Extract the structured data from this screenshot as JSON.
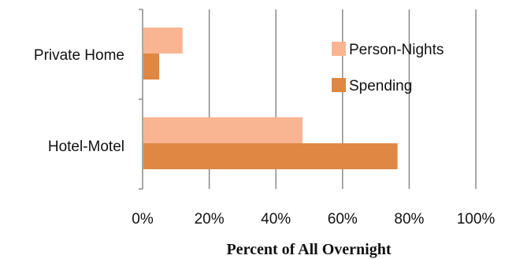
{
  "chart_data": {
    "type": "bar",
    "orientation": "horizontal",
    "categories": [
      "Private Home",
      "Hotel-Motel"
    ],
    "series": [
      {
        "name": "Person-Nights",
        "values": [
          12,
          48
        ],
        "color": "#F9B592"
      },
      {
        "name": "Spending",
        "values": [
          5,
          76.5
        ],
        "color": "#DE8844"
      }
    ],
    "xlabel": "Percent  of All Overnight",
    "ylabel": "",
    "xlim": [
      0,
      100
    ],
    "xticks": [
      "0%",
      "20%",
      "40%",
      "60%",
      "80%",
      "100%"
    ],
    "grid": true,
    "legend": "right"
  }
}
